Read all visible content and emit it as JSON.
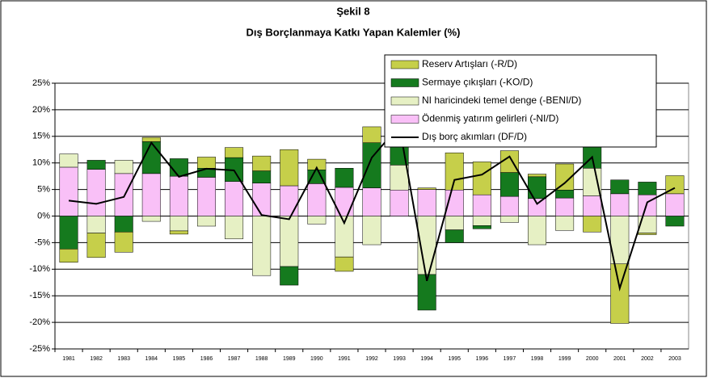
{
  "chart_data": {
    "type": "bar",
    "title": "Şekil 8",
    "subtitle": "Dış Borçlanmaya Katkı Yapan Kalemler (%)",
    "categories": [
      "1981",
      "1982",
      "1983",
      "1984",
      "1985",
      "1986",
      "1987",
      "1988",
      "1989",
      "1990",
      "1991",
      "1992",
      "1993",
      "1994",
      "1995",
      "1996",
      "1997",
      "1998",
      "1999",
      "2000",
      "2001",
      "2002",
      "2003"
    ],
    "series": [
      {
        "name": "Reserv Artışları (-R/D)",
        "color": "#c6cf4a",
        "values": [
          -2.5,
          -4.6,
          -3.8,
          0.8,
          -0.6,
          2.1,
          1.9,
          2.8,
          6.8,
          2.0,
          -2.7,
          3.0,
          2.5,
          0.3,
          7.0,
          6.2,
          4.1,
          0.5,
          4.9,
          -3.0,
          -11.2,
          -0.3,
          3.4
        ]
      },
      {
        "name": "Sermaye çıkışları (-KO/D)",
        "color": "#157a1e",
        "values": [
          -6.2,
          1.7,
          -3.0,
          6.0,
          3.3,
          1.7,
          4.5,
          2.3,
          -3.5,
          2.6,
          3.6,
          8.5,
          5.0,
          -6.7,
          -2.4,
          -0.6,
          4.5,
          4.1,
          1.5,
          4.5,
          2.6,
          2.4,
          -1.9
        ]
      },
      {
        "name": "NI haricindeki temel denge (-BENI/D)",
        "color": "#e6f0c4",
        "values": [
          2.5,
          -3.2,
          2.5,
          -1.0,
          -2.8,
          -1.9,
          -4.3,
          -11.2,
          -9.5,
          -1.5,
          -7.7,
          -5.4,
          4.7,
          -11.0,
          -2.6,
          -1.8,
          -1.2,
          -5.4,
          -2.7,
          5.2,
          -9.0,
          -3.2,
          0
        ]
      },
      {
        "name": "Ödenmiş yatırım gelirleri (-NI/D)",
        "color": "#f9c0f7",
        "values": [
          9.2,
          8.8,
          8.0,
          8.0,
          7.5,
          7.3,
          6.5,
          6.2,
          5.7,
          6.1,
          5.4,
          5.3,
          4.9,
          5.0,
          4.9,
          4.0,
          3.7,
          3.3,
          3.4,
          3.8,
          4.2,
          4.0,
          4.2
        ]
      },
      {
        "name": "Dış borç akımları (DF/D)",
        "color": "#000000",
        "type": "line",
        "values": [
          2.9,
          2.3,
          3.6,
          13.8,
          7.4,
          8.9,
          8.6,
          0.2,
          -0.6,
          9.1,
          -1.3,
          11.0,
          17.0,
          -12.2,
          6.8,
          7.8,
          11.2,
          2.3,
          6.2,
          11.1,
          -13.6,
          2.6,
          5.3
        ]
      }
    ],
    "ylim": [
      -25,
      25
    ],
    "yticks": [
      {
        "value": -25,
        "label": "-25%"
      },
      {
        "value": -20,
        "label": "-20%"
      },
      {
        "value": -15,
        "label": "-15%"
      },
      {
        "value": -10,
        "label": "-10%"
      },
      {
        "value": -5,
        "label": "-5%"
      },
      {
        "value": 0,
        "label": "0%"
      },
      {
        "value": 5,
        "label": "5%"
      },
      {
        "value": 10,
        "label": "10%"
      },
      {
        "value": 15,
        "label": "15%"
      },
      {
        "value": 20,
        "label": "20%"
      },
      {
        "value": 25,
        "label": "25%"
      }
    ],
    "grid": true
  }
}
